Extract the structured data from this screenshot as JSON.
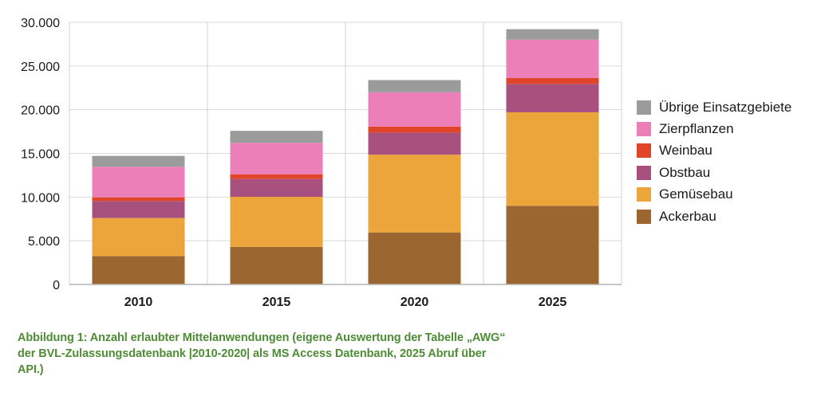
{
  "chart_data": {
    "type": "bar",
    "stacked": true,
    "title": "",
    "xlabel": "",
    "ylabel": "",
    "categories": [
      "2010",
      "2015",
      "2020",
      "2025"
    ],
    "ylim": [
      0,
      30000
    ],
    "yticks": [
      0,
      5000,
      10000,
      15000,
      20000,
      25000,
      30000
    ],
    "ytick_labels": [
      "0",
      "5.000",
      "10.000",
      "15.000",
      "20.000",
      "25.000",
      "30.000"
    ],
    "grid": true,
    "legend_position": "right",
    "series": [
      {
        "name": "Ackerbau",
        "color": "#9c6631",
        "values": [
          3250,
          4300,
          5950,
          9000
        ]
      },
      {
        "name": "Gemüsebau",
        "color": "#eba53b",
        "values": [
          4350,
          5730,
          8900,
          10700
        ]
      },
      {
        "name": "Obstbau",
        "color": "#a8517e",
        "values": [
          1950,
          2040,
          2530,
          3250
        ]
      },
      {
        "name": "Weinbau",
        "color": "#e04429",
        "values": [
          420,
          540,
          690,
          670
        ]
      },
      {
        "name": "Zierpflanzen",
        "color": "#ec7fb7",
        "values": [
          3500,
          3600,
          3920,
          4400
        ]
      },
      {
        "name": "Übrige Einsatzgebiete",
        "color": "#9b9b9b",
        "values": [
          1240,
          1370,
          1400,
          1190
        ]
      }
    ]
  },
  "legend_order": [
    "Übrige Einsatzgebiete",
    "Zierpflanzen",
    "Weinbau",
    "Obstbau",
    "Gemüsebau",
    "Ackerbau"
  ],
  "caption": "Abbildung 1: Anzahl erlaubter Mittelanwendungen (eigene Auswertung der Tabelle „AWG“ der BVL-Zulassungsdatenbank |2010-2020| als MS Access Datenbank, 2025 Abruf über API.)"
}
